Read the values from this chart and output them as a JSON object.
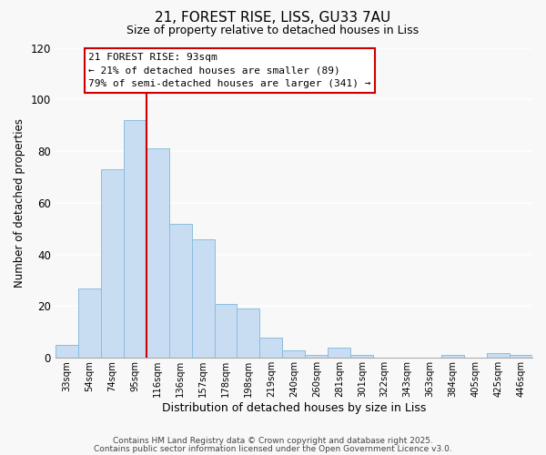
{
  "title": "21, FOREST RISE, LISS, GU33 7AU",
  "subtitle": "Size of property relative to detached houses in Liss",
  "xlabel": "Distribution of detached houses by size in Liss",
  "ylabel": "Number of detached properties",
  "bin_labels": [
    "33sqm",
    "54sqm",
    "74sqm",
    "95sqm",
    "116sqm",
    "136sqm",
    "157sqm",
    "178sqm",
    "198sqm",
    "219sqm",
    "240sqm",
    "260sqm",
    "281sqm",
    "301sqm",
    "322sqm",
    "343sqm",
    "363sqm",
    "384sqm",
    "405sqm",
    "425sqm",
    "446sqm"
  ],
  "bar_heights": [
    5,
    27,
    73,
    92,
    81,
    52,
    46,
    21,
    19,
    8,
    3,
    1,
    4,
    1,
    0,
    0,
    0,
    1,
    0,
    2,
    1
  ],
  "bar_color": "#c8ddf2",
  "bar_edge_color": "#8bbde0",
  "ylim": [
    0,
    120
  ],
  "yticks": [
    0,
    20,
    40,
    60,
    80,
    100,
    120
  ],
  "vline_x": 3,
  "vline_color": "#cc0000",
  "annotation_title": "21 FOREST RISE: 93sqm",
  "annotation_line1": "← 21% of detached houses are smaller (89)",
  "annotation_line2": "79% of semi-detached houses are larger (341) →",
  "footer1": "Contains HM Land Registry data © Crown copyright and database right 2025.",
  "footer2": "Contains public sector information licensed under the Open Government Licence v3.0.",
  "background_color": "#f8f8f8"
}
